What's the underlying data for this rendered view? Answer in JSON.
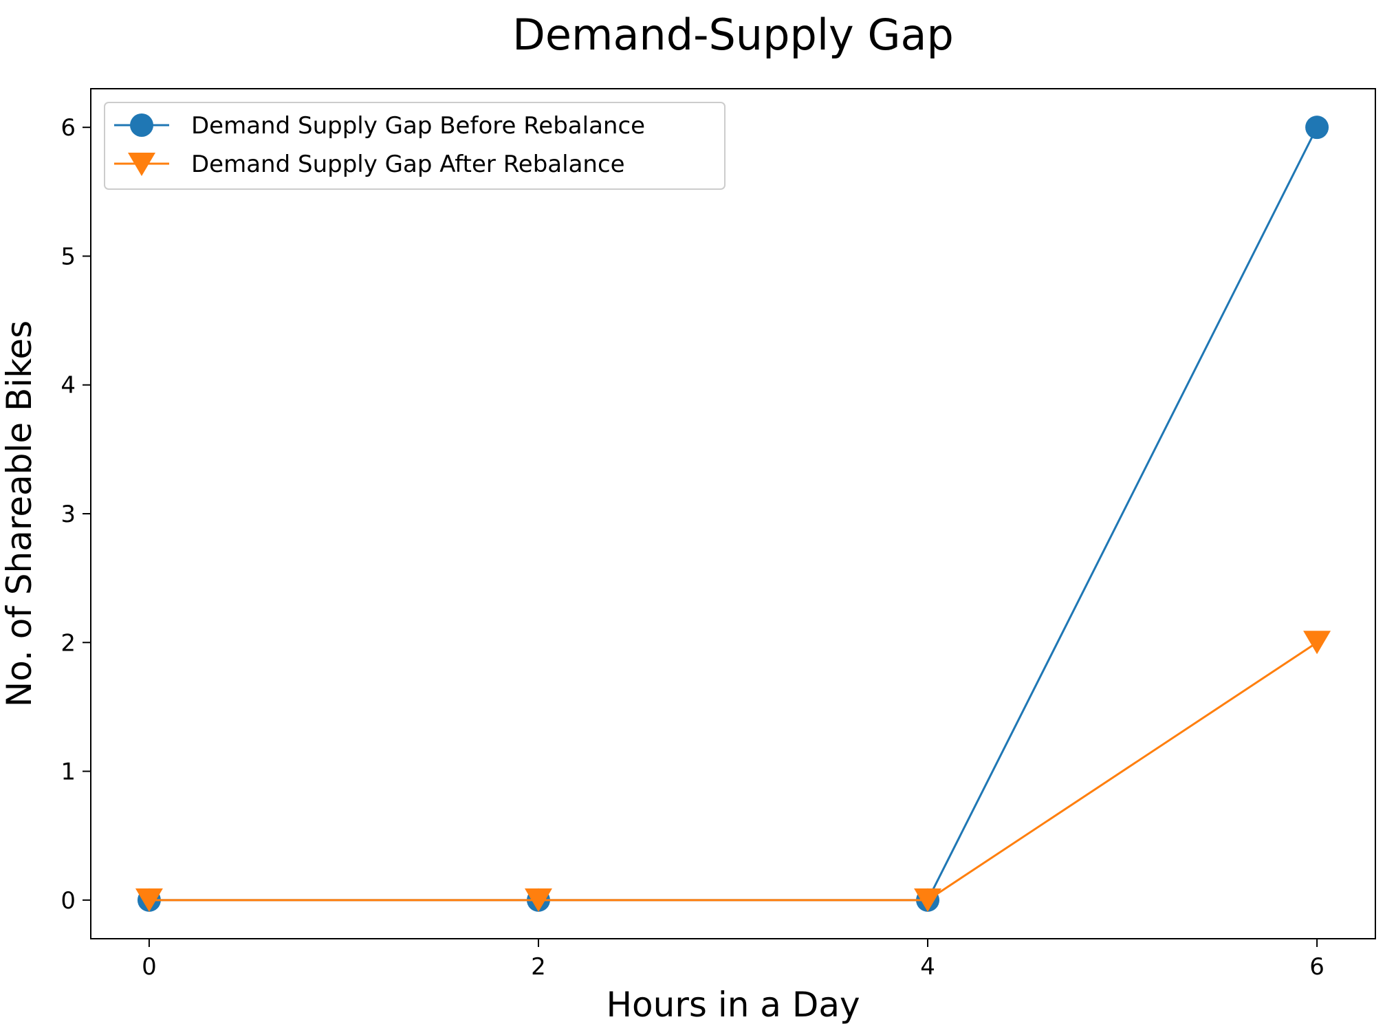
{
  "chart_data": {
    "type": "line",
    "title": "Demand-Supply Gap",
    "xlabel": "Hours in a Day",
    "ylabel": "No. of Shareable Bikes",
    "x": [
      0,
      2,
      4,
      6
    ],
    "xticks": [
      "0",
      "2",
      "4",
      "6"
    ],
    "yticks": [
      "0",
      "1",
      "2",
      "3",
      "4",
      "5",
      "6"
    ],
    "xlim": [
      -0.3,
      6.3
    ],
    "ylim": [
      -0.3,
      6.3
    ],
    "grid": false,
    "legend_position": "top-left",
    "series": [
      {
        "name": "Demand Supply Gap Before Rebalance",
        "values": [
          0,
          0,
          0,
          6
        ],
        "color": "#1f77b4",
        "marker": "circle"
      },
      {
        "name": "Demand Supply Gap After Rebalance",
        "values": [
          0,
          0,
          0,
          2
        ],
        "color": "#ff7f0e",
        "marker": "triangle-down"
      }
    ]
  }
}
